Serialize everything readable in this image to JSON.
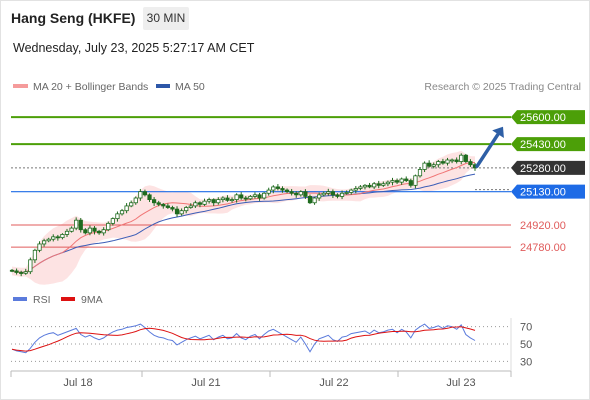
{
  "header": {
    "title": "Hang Seng (HKFE)",
    "timeframe": "30 MIN",
    "datetime": "Wednesday, July 23, 2025 5:27:17 AM CET"
  },
  "legend": {
    "bollinger_label": "MA 20 + Bollinger Bands",
    "ma50_label": "MA 50",
    "copyright": "Research © 2025 Trading Central",
    "rsi_label": "RSI",
    "rsi_ma_label": "9MA"
  },
  "colors": {
    "resistance": "#4c9f08",
    "support": "#e05b5b",
    "pivot": "#1e6be6",
    "current": "#333333",
    "ma20": "#f07575",
    "band_fill": "#fde2e2",
    "ma50": "#3b5db7",
    "candle": "#1f6b1f",
    "arrow": "#2e5fa6",
    "rsi": "#5b7bdc",
    "rsi_ma": "#dd1111"
  },
  "chart_data": [
    {
      "type": "candlestick",
      "title": "Hang Seng (HKFE)",
      "timeframe": "30 MIN",
      "x_labels": [
        "Jul 18",
        "Jul 21",
        "Jul 22",
        "Jul 23"
      ],
      "ylim": [
        24560,
        25740
      ],
      "levels": [
        {
          "kind": "resistance",
          "value": 25600,
          "label": "25600.00"
        },
        {
          "kind": "resistance",
          "value": 25430,
          "label": "25430.00"
        },
        {
          "kind": "current",
          "value": 25280,
          "label": "25280.00"
        },
        {
          "kind": "pivot",
          "value": 25130,
          "label": "25130.00"
        },
        {
          "kind": "support",
          "value": 24920,
          "label": "24920.00"
        },
        {
          "kind": "support",
          "value": 24780,
          "label": "24780.00"
        }
      ],
      "projection": {
        "from": 25290,
        "to": 25540
      },
      "close_series": [
        24630,
        24620,
        24615,
        24625,
        24700,
        24760,
        24800,
        24820,
        24830,
        24845,
        24840,
        24860,
        24880,
        24900,
        24950,
        24890,
        24870,
        24900,
        24880,
        24870,
        24890,
        24930,
        24960,
        24990,
        25010,
        25040,
        25060,
        25090,
        25130,
        25110,
        25080,
        25060,
        25050,
        25040,
        25030,
        25020,
        24990,
        25010,
        25030,
        25040,
        25060,
        25050,
        25070,
        25080,
        25060,
        25080,
        25090,
        25075,
        25080,
        25110,
        25090,
        25085,
        25100,
        25110,
        25090,
        25120,
        25140,
        25160,
        25150,
        25140,
        25130,
        25120,
        25110,
        25130,
        25100,
        25060,
        25090,
        25110,
        25120,
        25130,
        25110,
        25100,
        25120,
        25125,
        25140,
        25150,
        25160,
        25170,
        25160,
        25180,
        25170,
        25180,
        25190,
        25200,
        25190,
        25210,
        25200,
        25170,
        25230,
        25270,
        25310,
        25290,
        25300,
        25320,
        25310,
        25330,
        25330,
        25320,
        25360,
        25320,
        25300,
        25280
      ],
      "overlays": [
        {
          "name": "MA 20 + Bollinger Bands"
        },
        {
          "name": "MA 50"
        }
      ]
    },
    {
      "type": "line",
      "series": [
        {
          "name": "RSI",
          "values": [
            44,
            42,
            41,
            40,
            45,
            52,
            57,
            60,
            62,
            63,
            60,
            62,
            64,
            66,
            68,
            61,
            58,
            60,
            57,
            55,
            57,
            61,
            64,
            66,
            67,
            69,
            70,
            71,
            73,
            69,
            64,
            60,
            58,
            57,
            55,
            54,
            49,
            52,
            55,
            57,
            59,
            56,
            58,
            60,
            55,
            58,
            60,
            56,
            57,
            62,
            57,
            55,
            59,
            61,
            56,
            61,
            65,
            67,
            64,
            61,
            58,
            55,
            52,
            58,
            50,
            41,
            50,
            56,
            58,
            60,
            55,
            53,
            58,
            59,
            62,
            63,
            64,
            65,
            62,
            66,
            63,
            64,
            66,
            67,
            63,
            67,
            64,
            57,
            66,
            70,
            73,
            68,
            69,
            71,
            68,
            71,
            70,
            67,
            72,
            61,
            57,
            54
          ]
        },
        {
          "name": "9MA"
        }
      ],
      "ylim": [
        20,
        80
      ],
      "y_ticks": [
        "70",
        "50",
        "30"
      ]
    }
  ]
}
